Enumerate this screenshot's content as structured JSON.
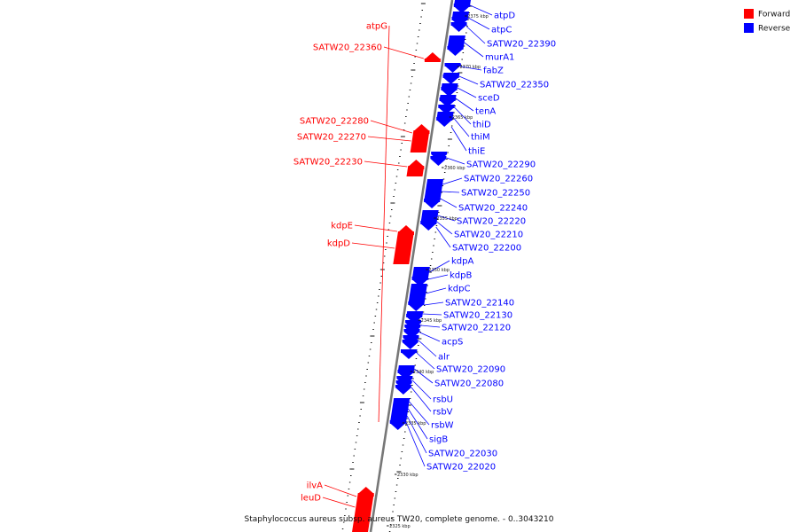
{
  "caption": "Staphylococcus aureus subsp. aureus TW20, complete genome. - 0..3043210",
  "legend": [
    {
      "label": "Forward",
      "color": "#ff0000"
    },
    {
      "label": "Reverse",
      "color": "#0000ff"
    }
  ],
  "colors": {
    "forward": "#ff0000",
    "reverse": "#0000ff",
    "backbone": "#777777"
  },
  "scale": {
    "unit": "kbp",
    "tick_labels": [
      "2375 kbp",
      "2370 kbp",
      "2365 kbp",
      "2360 kbp",
      "2355 kbp",
      "2350 kbp",
      "2345 kbp",
      "2340 kbp",
      "2335 kbp",
      "2330 kbp",
      "2325 kbp"
    ]
  },
  "forward_genes": [
    "atpG",
    "SATW20_22360",
    "SATW20_22280",
    "SATW20_22270",
    "SATW20_22230",
    "kdpE",
    "kdpD",
    "ilvA",
    "leuD"
  ],
  "reverse_genes": [
    "atpD",
    "atpC",
    "SATW20_22390",
    "murA1",
    "fabZ",
    "SATW20_22350",
    "sceD",
    "tenA",
    "thiD",
    "thiM",
    "thiE",
    "SATW20_22290",
    "SATW20_22260",
    "SATW20_22250",
    "SATW20_22240",
    "SATW20_22220",
    "SATW20_22210",
    "SATW20_22200",
    "kdpA",
    "kdpB",
    "kdpC",
    "SATW20_22140",
    "SATW20_22130",
    "SATW20_22120",
    "acpS",
    "alr",
    "SATW20_22090",
    "SATW20_22080",
    "rsbU",
    "rsbV",
    "rsbW",
    "sigB",
    "SATW20_22030",
    "SATW20_22020"
  ]
}
